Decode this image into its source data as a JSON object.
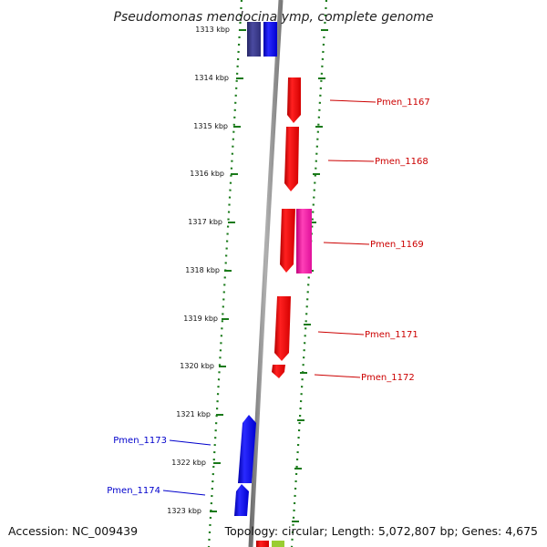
{
  "title": "Pseudomonas mendocina ymp, complete genome",
  "footer": {
    "accession": "Accession: NC_009439",
    "summary": "Topology: circular; Length: 5,072,807 bp; Genes: 4,675"
  },
  "ticks": [
    {
      "label": "1313 kbp"
    },
    {
      "label": "1314 kbp"
    },
    {
      "label": "1315 kbp"
    },
    {
      "label": "1316 kbp"
    },
    {
      "label": "1317 kbp"
    },
    {
      "label": "1318 kbp"
    },
    {
      "label": "1319 kbp"
    },
    {
      "label": "1320 kbp"
    },
    {
      "label": "1321 kbp"
    },
    {
      "label": "1322 kbp"
    },
    {
      "label": "1323 kbp"
    }
  ],
  "gene_labels": [
    {
      "name": "Pmen_1167",
      "color": "#cc0000"
    },
    {
      "name": "Pmen_1168",
      "color": "#cc0000"
    },
    {
      "name": "Pmen_1169",
      "color": "#cc0000"
    },
    {
      "name": "Pmen_1171",
      "color": "#cc0000"
    },
    {
      "name": "Pmen_1172",
      "color": "#cc0000"
    },
    {
      "name": "Pmen_1173",
      "color": "#0000cc"
    },
    {
      "name": "Pmen_1174",
      "color": "#0000cc"
    }
  ],
  "colors": {
    "forward_gene": "#ff0000",
    "reverse_gene": "#0000ff",
    "rna_gene": "#ff2aa8",
    "dark_gene": "#3a3a8c",
    "tick_marks": "#1a7a1a",
    "backbone": "#8a8a8a"
  }
}
